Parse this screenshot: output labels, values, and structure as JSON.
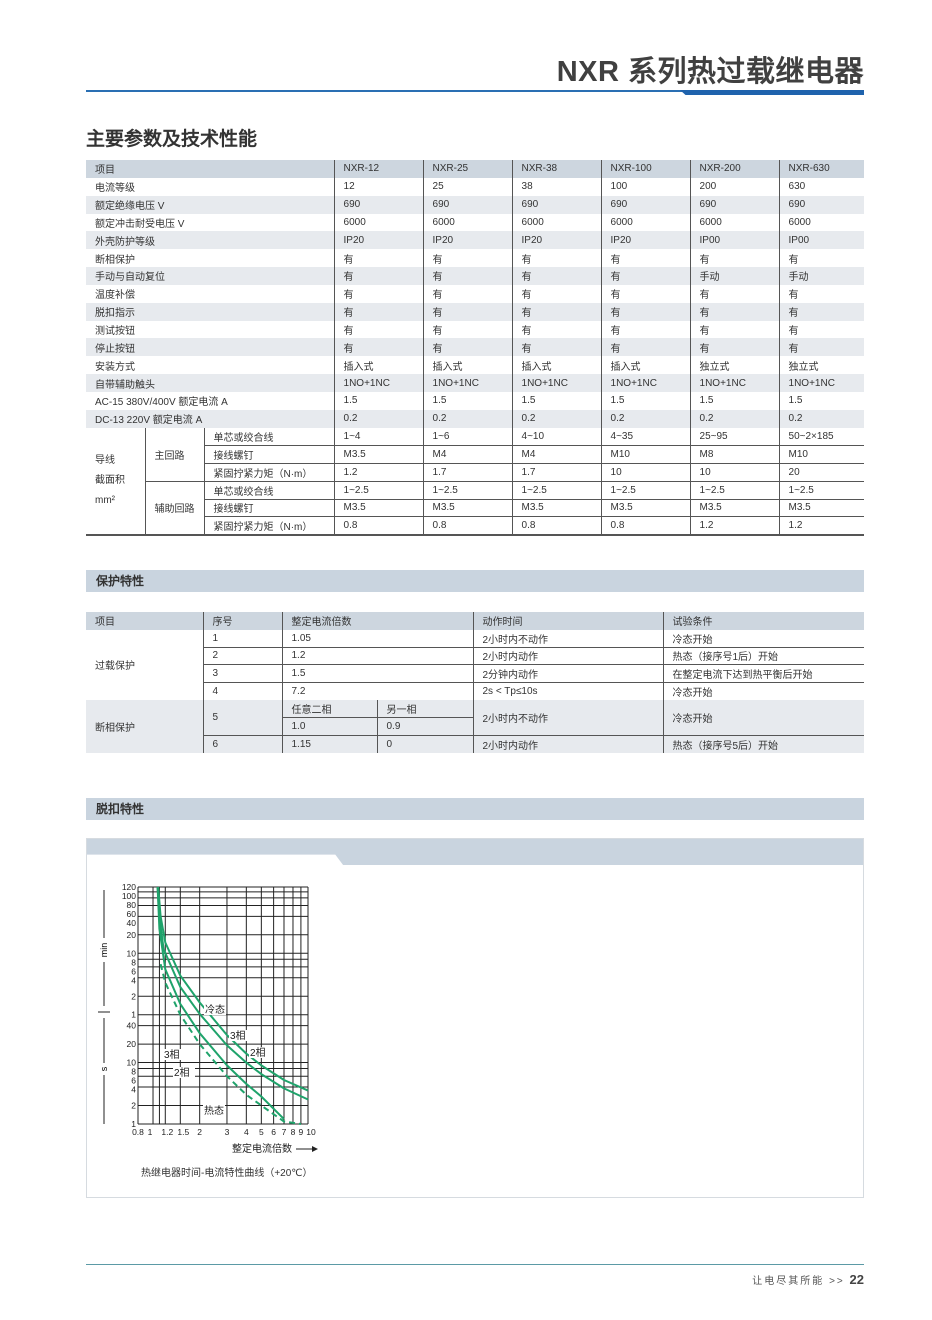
{
  "header": {
    "title": "NXR 系列热过载继电器"
  },
  "section_main": {
    "title": "主要参数及技术性能"
  },
  "spec_table": {
    "columns": [
      "项目",
      "NXR-12",
      "NXR-25",
      "NXR-38",
      "NXR-100",
      "NXR-200",
      "NXR-630"
    ],
    "rows": [
      {
        "label": "电流等级",
        "values": [
          "12",
          "25",
          "38",
          "100",
          "200",
          "630"
        ]
      },
      {
        "label": "额定绝缘电压 V",
        "values": [
          "690",
          "690",
          "690",
          "690",
          "690",
          "690"
        ]
      },
      {
        "label": "额定冲击耐受电压 V",
        "values": [
          "6000",
          "6000",
          "6000",
          "6000",
          "6000",
          "6000"
        ]
      },
      {
        "label": "外壳防护等级",
        "values": [
          "IP20",
          "IP20",
          "IP20",
          "IP20",
          "IP00",
          "IP00"
        ]
      },
      {
        "label": "断相保护",
        "values": [
          "有",
          "有",
          "有",
          "有",
          "有",
          "有"
        ]
      },
      {
        "label": "手动与自动复位",
        "values": [
          "有",
          "有",
          "有",
          "有",
          "手动",
          "手动"
        ]
      },
      {
        "label": "温度补偿",
        "values": [
          "有",
          "有",
          "有",
          "有",
          "有",
          "有"
        ]
      },
      {
        "label": "脱扣指示",
        "values": [
          "有",
          "有",
          "有",
          "有",
          "有",
          "有"
        ]
      },
      {
        "label": "测试按钮",
        "values": [
          "有",
          "有",
          "有",
          "有",
          "有",
          "有"
        ]
      },
      {
        "label": "停止按钮",
        "values": [
          "有",
          "有",
          "有",
          "有",
          "有",
          "有"
        ]
      },
      {
        "label": "安装方式",
        "values": [
          "插入式",
          "插入式",
          "插入式",
          "插入式",
          "独立式",
          "独立式"
        ]
      },
      {
        "label": "自带辅助触头",
        "values": [
          "1NO+1NC",
          "1NO+1NC",
          "1NO+1NC",
          "1NO+1NC",
          "1NO+1NC",
          "1NO+1NC"
        ]
      },
      {
        "label": "AC-15  380V/400V  额定电流 A",
        "values": [
          "1.5",
          "1.5",
          "1.5",
          "1.5",
          "1.5",
          "1.5"
        ]
      },
      {
        "label": "DC-13  220V  额定电流 A",
        "values": [
          "0.2",
          "0.2",
          "0.2",
          "0.2",
          "0.2",
          "0.2"
        ]
      }
    ],
    "wire": {
      "label_lines": [
        "导线",
        "截面积",
        "mm²"
      ],
      "groups": [
        {
          "label": "主回路",
          "items": [
            {
              "label": "单芯或绞合线",
              "values": [
                "1~4",
                "1~6",
                "4~10",
                "4~35",
                "25~95",
                "50~2×185"
              ]
            },
            {
              "label": "接线螺钉",
              "values": [
                "M3.5",
                "M4",
                "M4",
                "M10",
                "M8",
                "M10"
              ]
            },
            {
              "label": "紧固拧紧力矩（N·m）",
              "values": [
                "1.2",
                "1.7",
                "1.7",
                "10",
                "10",
                "20"
              ]
            }
          ]
        },
        {
          "label": "辅助回路",
          "items": [
            {
              "label": "单芯或绞合线",
              "values": [
                "1~2.5",
                "1~2.5",
                "1~2.5",
                "1~2.5",
                "1~2.5",
                "1~2.5"
              ]
            },
            {
              "label": "接线螺钉",
              "values": [
                "M3.5",
                "M3.5",
                "M3.5",
                "M3.5",
                "M3.5",
                "M3.5"
              ]
            },
            {
              "label": "紧固拧紧力矩（N·m）",
              "values": [
                "0.8",
                "0.8",
                "0.8",
                "0.8",
                "1.2",
                "1.2"
              ]
            }
          ]
        }
      ]
    }
  },
  "section_protect": {
    "title": "保护特性"
  },
  "protect_table": {
    "columns": [
      "项目",
      "序号",
      "整定电流倍数",
      "动作时间",
      "试验条件"
    ],
    "overload_label": "过载保护",
    "phase_label": "断相保护",
    "overload_rows": [
      {
        "no": "1",
        "multiple": "1.05",
        "time": "2小时内不动作",
        "condition": "冷态开始"
      },
      {
        "no": "2",
        "multiple": "1.2",
        "time": "2小时内动作",
        "condition": "热态（接序号1后）开始"
      },
      {
        "no": "3",
        "multiple": "1.5",
        "time": "2分钟内动作",
        "condition": "在整定电流下达到热平衡后开始"
      },
      {
        "no": "4",
        "multiple": "7.2",
        "time": "2s < Tp≤10s",
        "condition": "冷态开始"
      }
    ],
    "phase_rows": [
      {
        "no": "5",
        "sub_headers": [
          "任意二相",
          "另一相"
        ],
        "multiple_a": "1.0",
        "multiple_b": "0.9",
        "time": "2小时内不动作",
        "condition": "冷态开始"
      },
      {
        "no": "6",
        "multiple_a": "1.15",
        "multiple_b": "0",
        "time": "2小时内动作",
        "condition": "热态（接序号5后）开始"
      }
    ]
  },
  "section_trip": {
    "title": "脱扣特性"
  },
  "chart_data": {
    "type": "line",
    "title": "热继电器时间-电流特性曲线（+20℃）",
    "xlabel": "整定电流倍数",
    "x_scale": "log",
    "y_scale": "log",
    "xlim": [
      0.8,
      10
    ],
    "ylim_seconds": [
      1,
      7200
    ],
    "x_ticks": [
      {
        "v": 0.8,
        "t": "0.8"
      },
      {
        "v": 1,
        "t": "1"
      },
      {
        "v": 1.2,
        "t": "1.2"
      },
      {
        "v": 1.5,
        "t": "1.5"
      },
      {
        "v": 2,
        "t": "2"
      },
      {
        "v": 3,
        "t": "3"
      },
      {
        "v": 4,
        "t": "4"
      },
      {
        "v": 5,
        "t": "5"
      },
      {
        "v": 6,
        "t": "6"
      },
      {
        "v": 7,
        "t": "7"
      },
      {
        "v": 8,
        "t": "8"
      },
      {
        "v": 9,
        "t": "9"
      },
      {
        "v": 10,
        "t": "10"
      }
    ],
    "y_unit_min": "min",
    "y_unit_s": "s",
    "y_ticks_min": [
      "120",
      "100",
      "80",
      "60",
      "40",
      "20",
      "10",
      "8",
      "6",
      "4",
      "2",
      "1"
    ],
    "y_ticks_s": [
      "40",
      "20",
      "10",
      "8",
      "6",
      "4",
      "2",
      "1"
    ],
    "grid": true,
    "line_color": "#1fa36b",
    "series": [
      {
        "name": "冷态 3相",
        "dash": false,
        "points": [
          [
            1.08,
            7200
          ],
          [
            1.12,
            2400
          ],
          [
            1.2,
            900
          ],
          [
            1.5,
            260
          ],
          [
            2,
            95
          ],
          [
            3,
            28
          ],
          [
            4,
            14
          ],
          [
            5,
            9
          ],
          [
            7,
            5.2
          ],
          [
            10,
            3.5
          ]
        ]
      },
      {
        "name": "冷态 2相",
        "dash": false,
        "points": [
          [
            1.07,
            7200
          ],
          [
            1.1,
            2400
          ],
          [
            1.17,
            700
          ],
          [
            1.5,
            170
          ],
          [
            2,
            62
          ],
          [
            3,
            19
          ],
          [
            4,
            10
          ],
          [
            5,
            6.5
          ],
          [
            7,
            3.8
          ],
          [
            10,
            2.5
          ]
        ]
      },
      {
        "name": "热态 3相",
        "dash": false,
        "points": [
          [
            1.07,
            7200
          ],
          [
            1.1,
            1500
          ],
          [
            1.2,
            330
          ],
          [
            1.5,
            90
          ],
          [
            2,
            30
          ],
          [
            3,
            9
          ],
          [
            4,
            4.5
          ],
          [
            5,
            2.8
          ],
          [
            7,
            1.2
          ]
        ]
      },
      {
        "name": "热态 2相",
        "dash": true,
        "points": [
          [
            1.12,
            400
          ],
          [
            1.2,
            200
          ],
          [
            1.5,
            60
          ],
          [
            2,
            20
          ],
          [
            3,
            6
          ],
          [
            4,
            3
          ],
          [
            5,
            2
          ],
          [
            7,
            1.1
          ],
          [
            9,
            0.9
          ]
        ]
      }
    ],
    "annotations": {
      "cold": "冷态",
      "hot": "热态",
      "three": "3相",
      "two": "2相"
    }
  },
  "footer": {
    "slogan": "让电尽其所能",
    "arrows": ">>",
    "page": "22"
  }
}
